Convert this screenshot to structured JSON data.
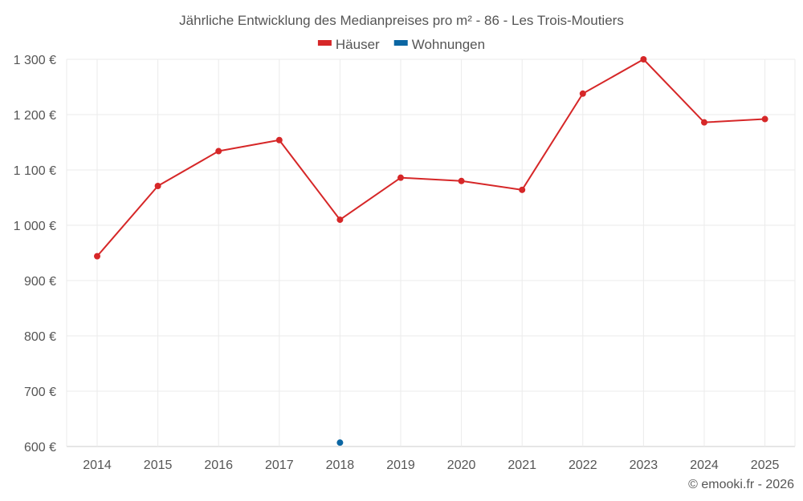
{
  "chart_data": {
    "type": "line",
    "title": "Jährliche Entwicklung des Medianpreises pro m² - 86 - Les Trois-Moutiers",
    "categories": [
      "2014",
      "2015",
      "2016",
      "2017",
      "2018",
      "2019",
      "2020",
      "2021",
      "2022",
      "2023",
      "2024",
      "2025"
    ],
    "series": [
      {
        "name": "Häuser",
        "color": "#d62728",
        "values": [
          944,
          1071,
          1134,
          1154,
          1010,
          1086,
          1080,
          1064,
          1238,
          1300,
          1186,
          1192
        ]
      },
      {
        "name": "Wohnungen",
        "color": "#0b66a3",
        "values": [
          null,
          null,
          null,
          null,
          607,
          null,
          null,
          null,
          null,
          null,
          null,
          null
        ]
      }
    ],
    "ylim": [
      600,
      1300
    ],
    "yticks": [
      600,
      700,
      800,
      900,
      1000,
      1100,
      1200,
      1300
    ],
    "ytick_labels": [
      "600 €",
      "700 €",
      "800 €",
      "900 €",
      "1 000 €",
      "1 100 €",
      "1 200 €",
      "1 300 €"
    ],
    "xlabel": "",
    "ylabel": "",
    "grid": true,
    "legend_position": "top-center"
  },
  "credit": "© emooki.fr - 2026"
}
